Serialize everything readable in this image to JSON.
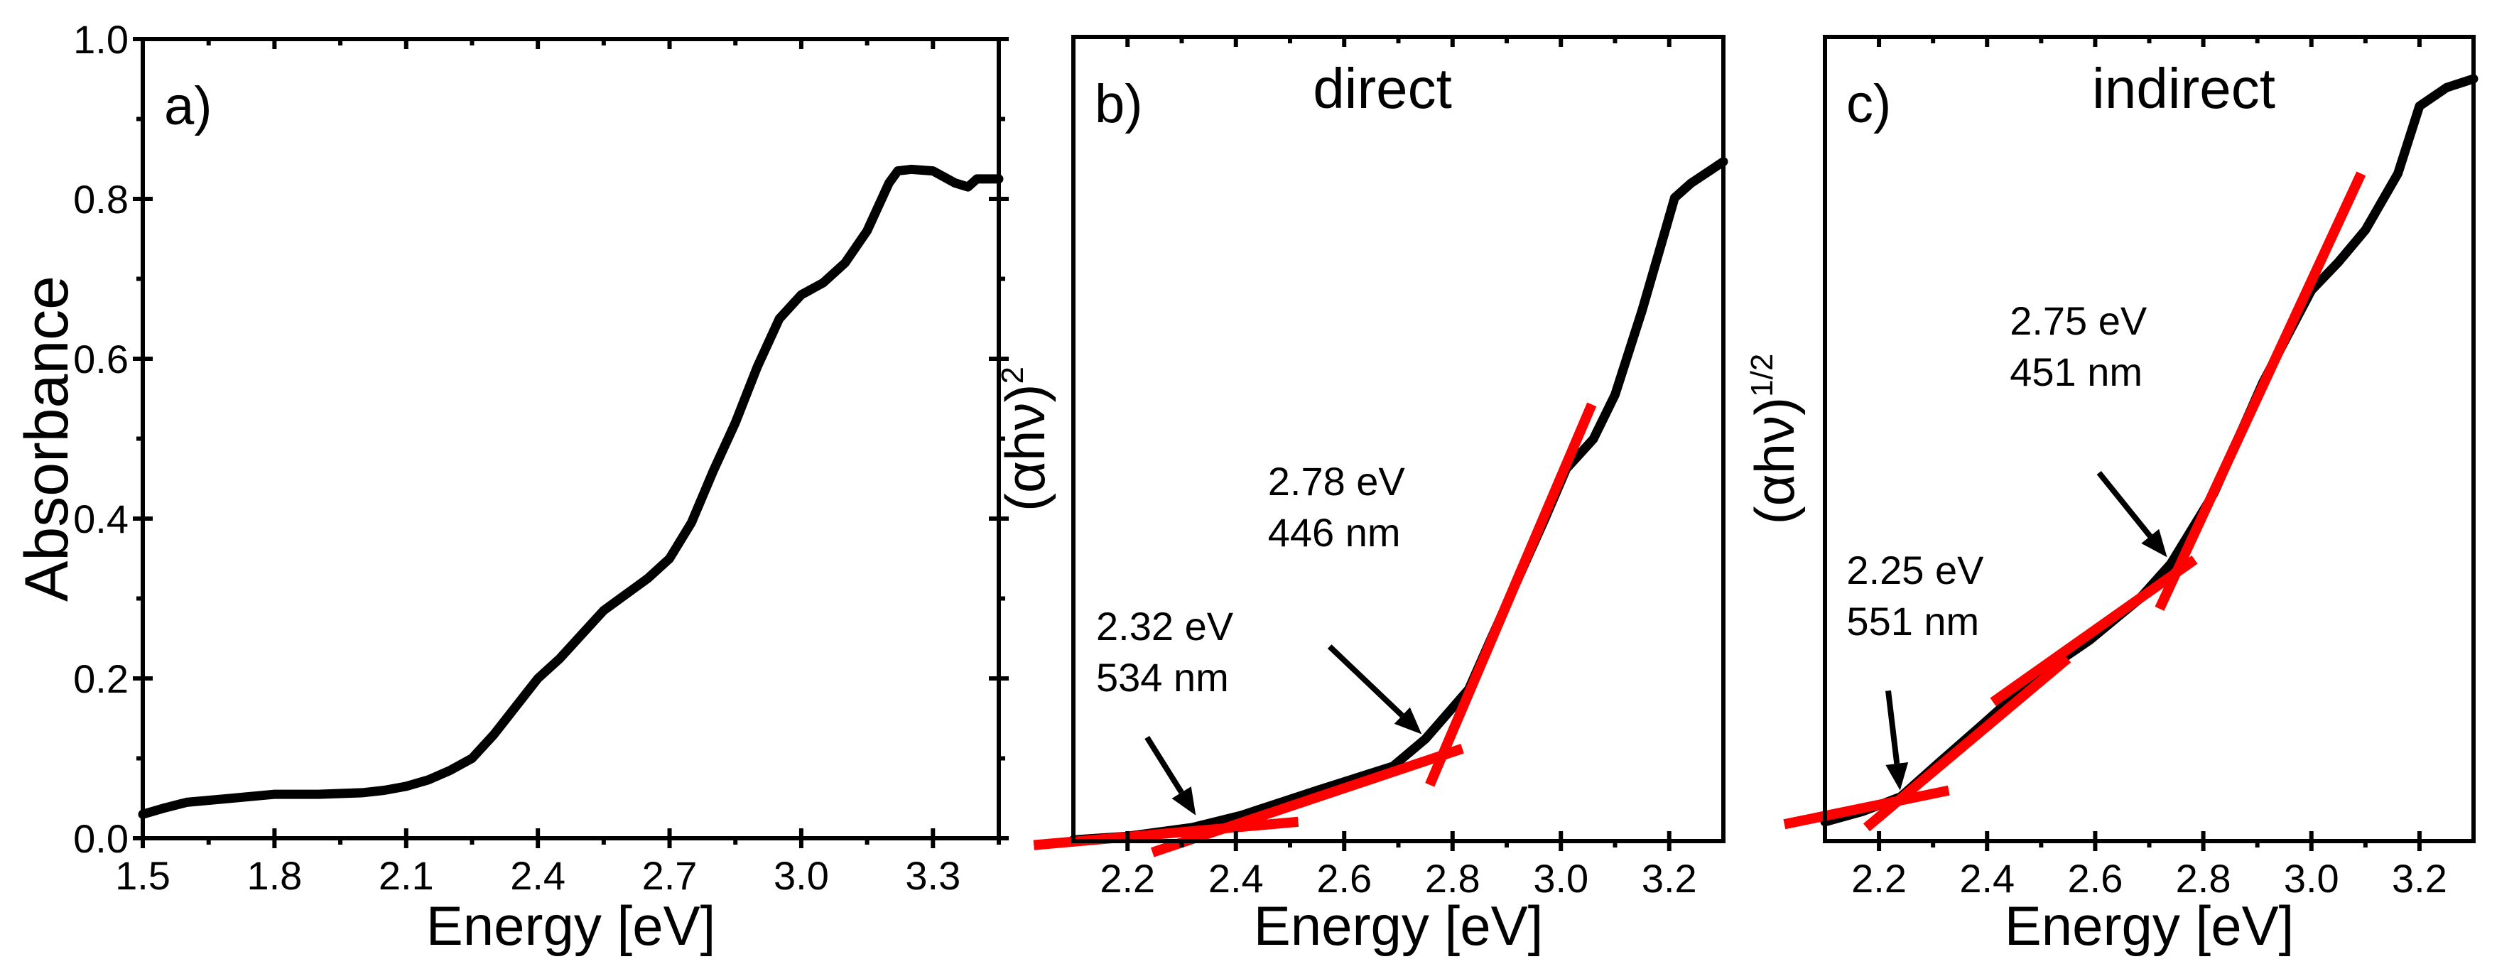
{
  "chart_data": [
    {
      "type": "line",
      "panel_label": "a)",
      "title": "",
      "xlabel": "Energy [eV]",
      "ylabel": "Absorbance",
      "xlim": [
        1.5,
        3.45
      ],
      "ylim": [
        0.0,
        1.0
      ],
      "xticks": [
        "1.5",
        "1.8",
        "2.1",
        "2.4",
        "2.7",
        "3.0",
        "3.3"
      ],
      "yticks": [
        "0.0",
        "0.2",
        "0.4",
        "0.6",
        "0.8",
        "1.0"
      ],
      "series": [
        {
          "name": "Absorbance",
          "color": "#000000",
          "x": [
            1.5,
            1.55,
            1.6,
            1.7,
            1.8,
            1.9,
            2.0,
            2.05,
            2.1,
            2.15,
            2.2,
            2.25,
            2.3,
            2.35,
            2.4,
            2.45,
            2.5,
            2.55,
            2.6,
            2.65,
            2.7,
            2.75,
            2.8,
            2.85,
            2.9,
            2.95,
            3.0,
            3.05,
            3.1,
            3.15,
            3.2,
            3.22,
            3.25,
            3.3,
            3.35,
            3.38,
            3.4,
            3.45
          ],
          "y": [
            0.03,
            0.038,
            0.045,
            0.05,
            0.055,
            0.055,
            0.057,
            0.06,
            0.065,
            0.073,
            0.085,
            0.1,
            0.13,
            0.165,
            0.2,
            0.225,
            0.255,
            0.285,
            0.305,
            0.325,
            0.35,
            0.395,
            0.46,
            0.52,
            0.59,
            0.65,
            0.68,
            0.695,
            0.72,
            0.76,
            0.82,
            0.835,
            0.837,
            0.835,
            0.82,
            0.815,
            0.825,
            0.825
          ]
        }
      ]
    },
    {
      "type": "line",
      "panel_label": "b)",
      "title": "direct",
      "xlabel": "Energy [eV]",
      "ylabel": "(αhν)",
      "ylabel_sup": "2",
      "xlim": [
        2.1,
        3.3
      ],
      "ylim": [
        0,
        1
      ],
      "y_units": "arbitrary (no tick labels)",
      "xticks": [
        "2.2",
        "2.4",
        "2.6",
        "2.8",
        "3.0",
        "3.2"
      ],
      "series": [
        {
          "name": "(αhν)^2",
          "color": "#000000",
          "x": [
            2.1,
            2.2,
            2.32,
            2.41,
            2.55,
            2.69,
            2.75,
            2.83,
            2.87,
            2.92,
            2.97,
            3.01,
            3.06,
            3.1,
            3.15,
            3.19,
            3.21,
            3.24,
            3.3
          ],
          "y": [
            0.0015,
            0.006,
            0.017,
            0.032,
            0.063,
            0.093,
            0.127,
            0.189,
            0.25,
            0.325,
            0.4,
            0.463,
            0.5,
            0.555,
            0.66,
            0.753,
            0.8,
            0.818,
            0.845
          ]
        }
      ],
      "fit_lines": [
        {
          "x": [
            2.027,
            2.515
          ],
          "y": [
            -0.005,
            0.024
          ],
          "color": "#ff0000"
        },
        {
          "x": [
            2.246,
            2.818
          ],
          "y": [
            -0.014,
            0.115
          ],
          "color": "#ff0000"
        },
        {
          "x": [
            2.758,
            3.057
          ],
          "y": [
            0.07,
            0.543
          ],
          "color": "#ff0000"
        }
      ],
      "annotations": [
        {
          "lines": [
            "2.32 eV",
            "534 nm"
          ],
          "x": 2.142,
          "y": 0.25,
          "arrow_from": [
            2.236,
            0.129
          ],
          "arrow_to": [
            2.326,
            0.032
          ]
        },
        {
          "lines": [
            "2.78 eV",
            "446 nm"
          ],
          "x": 2.459,
          "y": 0.43,
          "arrow_from": [
            2.573,
            0.242
          ],
          "arrow_to": [
            2.743,
            0.133
          ]
        }
      ]
    },
    {
      "type": "line",
      "panel_label": "c)",
      "title": "indirect",
      "xlabel": "Energy [eV]",
      "ylabel": "(αhν)",
      "ylabel_sup": "1/2",
      "xlim": [
        2.1,
        3.3
      ],
      "ylim": [
        0,
        1
      ],
      "y_units": "arbitrary (no tick labels)",
      "xticks": [
        "2.2",
        "2.4",
        "2.6",
        "2.8",
        "3.0",
        "3.2"
      ],
      "series": [
        {
          "name": "(αhν)^1/2",
          "color": "#000000",
          "x": [
            2.1,
            2.17,
            2.24,
            2.31,
            2.4,
            2.49,
            2.59,
            2.68,
            2.74,
            2.82,
            2.91,
            3.0,
            3.05,
            3.1,
            3.16,
            3.2,
            3.25,
            3.3
          ],
          "y": [
            0.024,
            0.037,
            0.055,
            0.097,
            0.15,
            0.204,
            0.25,
            0.3,
            0.345,
            0.433,
            0.57,
            0.685,
            0.72,
            0.76,
            0.83,
            0.914,
            0.937,
            0.948
          ]
        }
      ],
      "fit_lines": [
        {
          "x": [
            2.025,
            2.329
          ],
          "y": [
            0.021,
            0.063
          ],
          "color": "#ff0000"
        },
        {
          "x": [
            2.177,
            2.549
          ],
          "y": [
            0.017,
            0.227
          ],
          "color": "#ff0000"
        },
        {
          "x": [
            2.411,
            2.784
          ],
          "y": [
            0.173,
            0.35
          ],
          "color": "#ff0000"
        },
        {
          "x": [
            2.719,
            3.092
          ],
          "y": [
            0.289,
            0.83
          ],
          "color": "#ff0000"
        }
      ],
      "annotations": [
        {
          "lines": [
            "2.25 eV",
            "551 nm"
          ],
          "x": 2.14,
          "y": 0.32,
          "arrow_from": [
            2.217,
            0.187
          ],
          "arrow_to": [
            2.239,
            0.063
          ]
        },
        {
          "lines": [
            "2.75 eV",
            "451 nm"
          ],
          "x": 2.442,
          "y": 0.63,
          "arrow_from": [
            2.607,
            0.458
          ],
          "arrow_to": [
            2.733,
            0.353
          ]
        }
      ]
    }
  ]
}
